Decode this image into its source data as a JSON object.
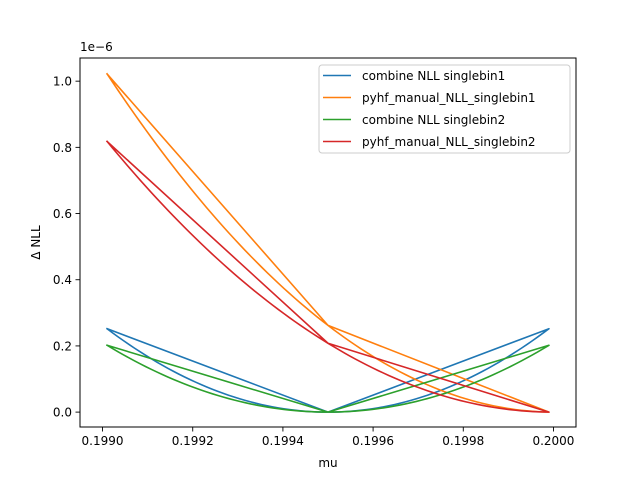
{
  "chart_data": {
    "type": "line",
    "title": "",
    "xlabel": "mu",
    "ylabel": "Δ NLL",
    "offset_text": "1e−6",
    "xlim": [
      0.19895,
      0.20005
    ],
    "ylim": [
      -0.045,
      1.07
    ],
    "y_scale_note": "values ×1e-6",
    "xticks": [
      0.199,
      0.1992,
      0.1994,
      0.1996,
      0.1998,
      0.2
    ],
    "xtick_labels": [
      "0.1990",
      "0.1992",
      "0.1994",
      "0.1996",
      "0.1998",
      "0.2000"
    ],
    "yticks": [
      0.0,
      0.2,
      0.4,
      0.6,
      0.8,
      1.0
    ],
    "ytick_labels": [
      "0.0",
      "0.2",
      "0.4",
      "0.6",
      "0.8",
      "1.0"
    ],
    "legend_position": "top-right",
    "grid": false,
    "series": [
      {
        "name": "combine NLL singlebin1",
        "color": "#1f77b4",
        "x": [
          0.19901,
          0.1995,
          0.19999
        ],
        "y": [
          0.252,
          0.0,
          0.252
        ],
        "curve": "closed-loop"
      },
      {
        "name": "pyhf_manual_NLL_singlebin1",
        "color": "#ff7f0e",
        "x": [
          0.19901,
          0.1995,
          0.19999
        ],
        "y": [
          1.022,
          0.262,
          0.0
        ],
        "curve": "closed-loop"
      },
      {
        "name": "combine NLL singlebin2",
        "color": "#2ca02c",
        "x": [
          0.19901,
          0.1995,
          0.19999
        ],
        "y": [
          0.202,
          0.0,
          0.202
        ],
        "curve": "closed-loop"
      },
      {
        "name": "pyhf_manual_NLL_singlebin2",
        "color": "#d62728",
        "x": [
          0.19901,
          0.1995,
          0.19999
        ],
        "y": [
          0.818,
          0.208,
          0.0
        ],
        "curve": "closed-loop"
      }
    ]
  }
}
